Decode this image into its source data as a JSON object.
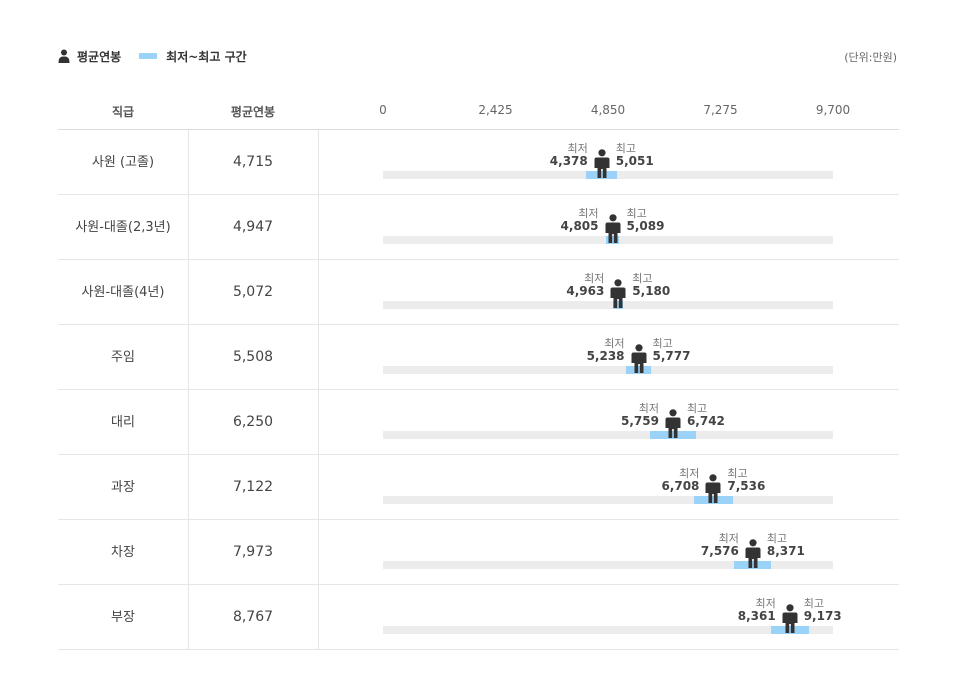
{
  "legend": {
    "average_label": "평균연봉",
    "range_label": "최저~최고 구간"
  },
  "unit": "(단위:만원)",
  "columns": {
    "grade": "직급",
    "average": "평균연봉"
  },
  "labels": {
    "min": "최저",
    "max": "최고"
  },
  "colors": {
    "range_band": "#9ad3f7",
    "track": "#ececec",
    "marker": "#333333"
  },
  "chart_data": {
    "type": "range-dot",
    "axis": {
      "min": 0,
      "max": 9700,
      "ticks": [
        "0",
        "2,425",
        "4,850",
        "7,275",
        "9,700"
      ],
      "tick_values": [
        0,
        2425,
        4850,
        7275,
        9700
      ]
    },
    "rows": [
      {
        "grade": "사원 (고졸)",
        "avg_text": "4,715",
        "avg": 4715,
        "min_text": "4,378",
        "min": 4378,
        "max_text": "5,051",
        "max": 5051
      },
      {
        "grade": "사원-대졸(2,3년)",
        "avg_text": "4,947",
        "avg": 4947,
        "min_text": "4,805",
        "min": 4805,
        "max_text": "5,089",
        "max": 5089
      },
      {
        "grade": "사원-대졸(4년)",
        "avg_text": "5,072",
        "avg": 5072,
        "min_text": "4,963",
        "min": 4963,
        "max_text": "5,180",
        "max": 5180
      },
      {
        "grade": "주임",
        "avg_text": "5,508",
        "avg": 5508,
        "min_text": "5,238",
        "min": 5238,
        "max_text": "5,777",
        "max": 5777
      },
      {
        "grade": "대리",
        "avg_text": "6,250",
        "avg": 6250,
        "min_text": "5,759",
        "min": 5759,
        "max_text": "6,742",
        "max": 6742
      },
      {
        "grade": "과장",
        "avg_text": "7,122",
        "avg": 7122,
        "min_text": "6,708",
        "min": 6708,
        "max_text": "7,536",
        "max": 7536
      },
      {
        "grade": "차장",
        "avg_text": "7,973",
        "avg": 7973,
        "min_text": "7,576",
        "min": 7576,
        "max_text": "8,371",
        "max": 8371
      },
      {
        "grade": "부장",
        "avg_text": "8,767",
        "avg": 8767,
        "min_text": "8,361",
        "min": 8361,
        "max_text": "9,173",
        "max": 9173
      }
    ]
  }
}
